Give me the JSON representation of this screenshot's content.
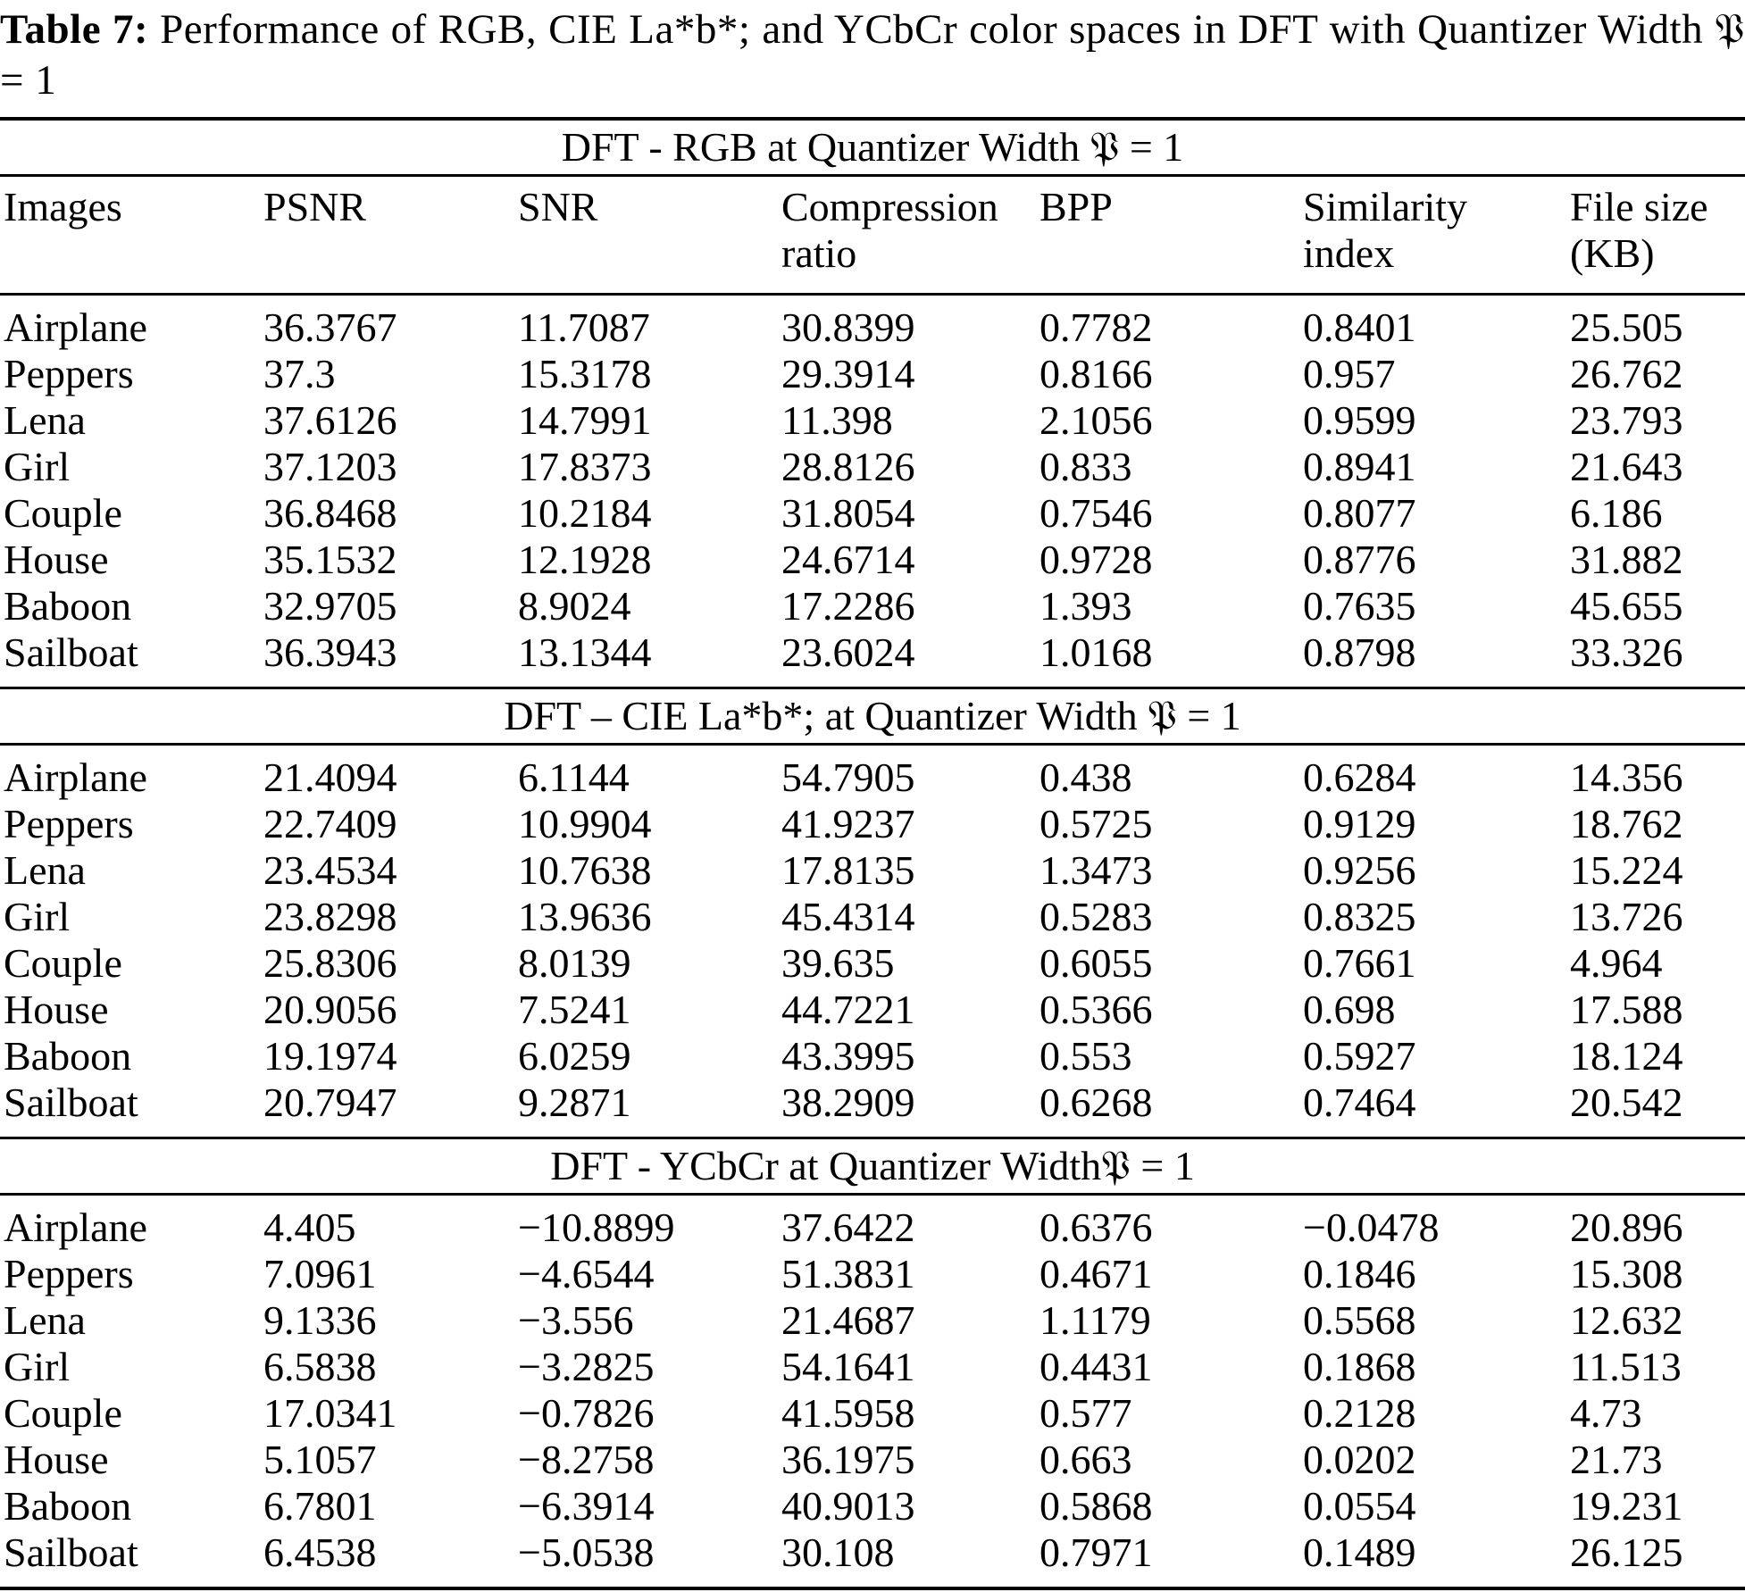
{
  "caption": {
    "label": "Table 7:",
    "text": "Performance of RGB, CIE La*b*; and YCbCr color spaces in DFT with Quantizer Width 𝔓 = 1"
  },
  "table": {
    "column_headers": [
      {
        "lines": [
          "Images"
        ]
      },
      {
        "lines": [
          "PSNR"
        ]
      },
      {
        "lines": [
          "SNR"
        ]
      },
      {
        "lines": [
          "Compression",
          "ratio"
        ]
      },
      {
        "lines": [
          "BPP"
        ]
      },
      {
        "lines": [
          "Similarity",
          "index"
        ]
      },
      {
        "lines": [
          "File size",
          "(KB)"
        ]
      }
    ],
    "sections": [
      {
        "title": "DFT - RGB at Quantizer Width 𝔓 = 1",
        "rows": [
          {
            "cells": [
              "Airplane",
              "36.3767",
              "11.7087",
              "30.8399",
              "0.7782",
              "0.8401",
              "25.505"
            ]
          },
          {
            "cells": [
              "Peppers",
              "37.3",
              "15.3178",
              "29.3914",
              "0.8166",
              "0.957",
              "26.762"
            ]
          },
          {
            "cells": [
              "Lena",
              "37.6126",
              "14.7991",
              "11.398",
              "2.1056",
              "0.9599",
              "23.793"
            ]
          },
          {
            "cells": [
              "Girl",
              "37.1203",
              "17.8373",
              "28.8126",
              "0.833",
              "0.8941",
              "21.643"
            ]
          },
          {
            "cells": [
              "Couple",
              "36.8468",
              "10.2184",
              "31.8054",
              "0.7546",
              "0.8077",
              "6.186"
            ]
          },
          {
            "cells": [
              "House",
              "35.1532",
              "12.1928",
              "24.6714",
              "0.9728",
              "0.8776",
              "31.882"
            ]
          },
          {
            "cells": [
              "Baboon",
              "32.9705",
              "8.9024",
              "17.2286",
              "1.393",
              "0.7635",
              "45.655"
            ]
          },
          {
            "cells": [
              "Sailboat",
              "36.3943",
              "13.1344",
              "23.6024",
              "1.0168",
              "0.8798",
              "33.326"
            ]
          }
        ]
      },
      {
        "title": "DFT – CIE La*b*; at Quantizer Width 𝔓 = 1",
        "rows": [
          {
            "cells": [
              "Airplane",
              "21.4094",
              "6.1144",
              "54.7905",
              "0.438",
              "0.6284",
              "14.356"
            ]
          },
          {
            "cells": [
              "Peppers",
              "22.7409",
              "10.9904",
              "41.9237",
              "0.5725",
              "0.9129",
              "18.762"
            ]
          },
          {
            "cells": [
              "Lena",
              "23.4534",
              "10.7638",
              "17.8135",
              "1.3473",
              "0.9256",
              "15.224"
            ]
          },
          {
            "cells": [
              "Girl",
              "23.8298",
              "13.9636",
              "45.4314",
              "0.5283",
              "0.8325",
              "13.726"
            ]
          },
          {
            "cells": [
              "Couple",
              "25.8306",
              "8.0139",
              "39.635",
              "0.6055",
              "0.7661",
              "4.964"
            ]
          },
          {
            "cells": [
              "House",
              "20.9056",
              "7.5241",
              "44.7221",
              "0.5366",
              "0.698",
              "17.588"
            ]
          },
          {
            "cells": [
              "Baboon",
              "19.1974",
              "6.0259",
              "43.3995",
              "0.553",
              "0.5927",
              "18.124"
            ]
          },
          {
            "cells": [
              "Sailboat",
              "20.7947",
              "9.2871",
              "38.2909",
              "0.6268",
              "0.7464",
              "20.542"
            ]
          }
        ]
      },
      {
        "title": "DFT - YCbCr at Quantizer Width𝔓 = 1",
        "rows": [
          {
            "cells": [
              "Airplane",
              "4.405",
              "−10.8899",
              "37.6422",
              "0.6376",
              "−0.0478",
              "20.896"
            ]
          },
          {
            "cells": [
              "Peppers",
              "7.0961",
              "−4.6544",
              "51.3831",
              "0.4671",
              "0.1846",
              "15.308"
            ]
          },
          {
            "cells": [
              "Lena",
              "9.1336",
              "−3.556",
              "21.4687",
              "1.1179",
              "0.5568",
              "12.632"
            ]
          },
          {
            "cells": [
              "Girl",
              "6.5838",
              "−3.2825",
              "54.1641",
              "0.4431",
              "0.1868",
              "11.513"
            ]
          },
          {
            "cells": [
              "Couple",
              "17.0341",
              "−0.7826",
              "41.5958",
              "0.577",
              "0.2128",
              "4.73"
            ]
          },
          {
            "cells": [
              "House",
              "5.1057",
              "−8.2758",
              "36.1975",
              "0.663",
              "0.0202",
              "21.73"
            ]
          },
          {
            "cells": [
              "Baboon",
              "6.7801",
              "−6.3914",
              "40.9013",
              "0.5868",
              "0.0554",
              "19.231"
            ]
          },
          {
            "cells": [
              "Sailboat",
              "6.4538",
              "−5.0538",
              "30.108",
              "0.7971",
              "0.1489",
              "26.125"
            ]
          }
        ]
      }
    ]
  }
}
